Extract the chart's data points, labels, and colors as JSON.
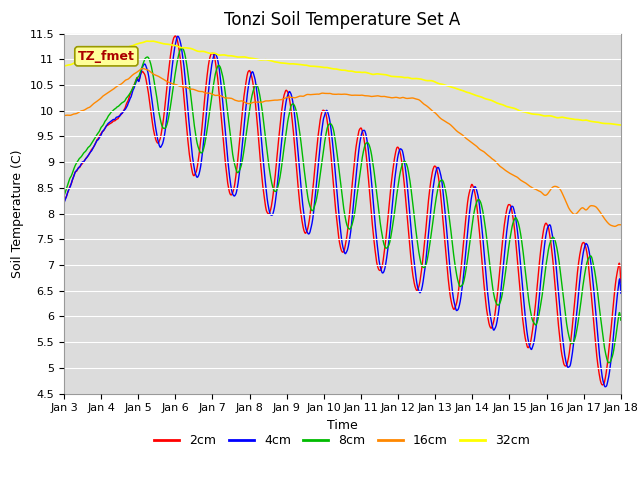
{
  "title": "Tonzi Soil Temperature Set A",
  "ylabel": "Soil Temperature (C)",
  "xlabel": "Time",
  "ylim": [
    4.5,
    11.5
  ],
  "yticks": [
    4.5,
    5.0,
    5.5,
    6.0,
    6.5,
    7.0,
    7.5,
    8.0,
    8.5,
    9.0,
    9.5,
    10.0,
    10.5,
    11.0,
    11.5
  ],
  "xtick_labels": [
    "Jan 3",
    "Jan 4",
    "Jan 5",
    "Jan 6",
    "Jan 7",
    "Jan 8",
    "Jan 9",
    "Jan 10",
    "Jan 11",
    "Jan 12",
    "Jan 13",
    "Jan 14",
    "Jan 15",
    "Jan 16",
    "Jan 17",
    "Jan 18"
  ],
  "legend_labels": [
    "2cm",
    "4cm",
    "8cm",
    "16cm",
    "32cm"
  ],
  "line_colors": [
    "#ff0000",
    "#0000ff",
    "#00bb00",
    "#ff8800",
    "#ffff00"
  ],
  "line_widths": [
    1.0,
    1.0,
    1.0,
    1.0,
    1.2
  ],
  "annotation_text": "TZ_fmet",
  "annotation_bg": "#ffff99",
  "annotation_fg": "#aa0000",
  "annotation_edge": "#999900",
  "bg_color": "#dcdcdc",
  "grid_color": "#ffffff",
  "title_fontsize": 12,
  "axis_fontsize": 9,
  "tick_fontsize": 8,
  "legend_fontsize": 9,
  "n_points": 1440
}
